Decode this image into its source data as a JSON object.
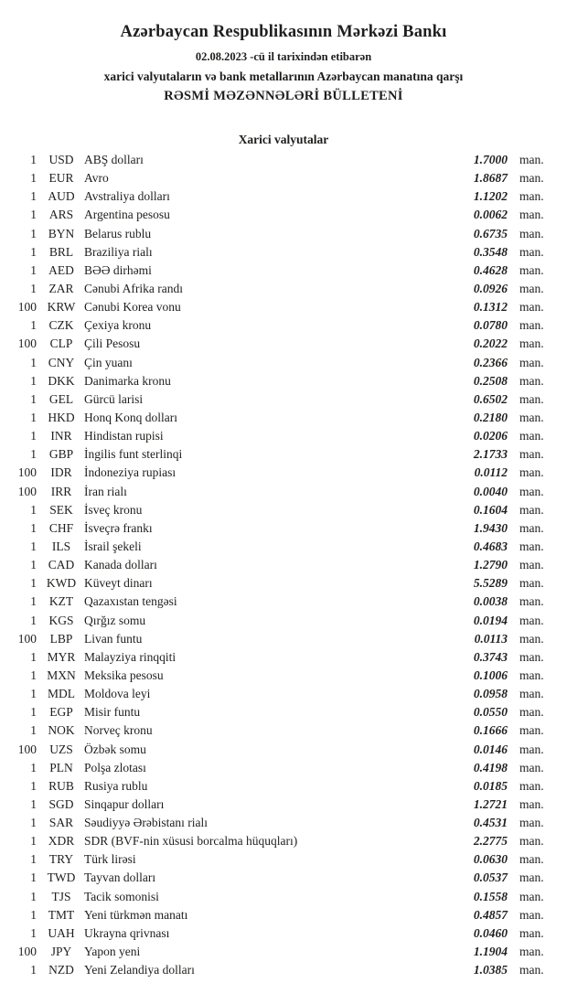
{
  "header": {
    "bank_name": "Azərbaycan Respublikasının Mərkəzi Bankı",
    "date_line": "02.08.2023 -cü il tarixindən etibarən",
    "subtitle": "xarici valyutaların və bank metallarının Azərbaycan manatına qarşı",
    "bulletin_title": "RƏSMİ MƏZƏNNƏLƏRİ BÜLLETENİ"
  },
  "section": {
    "title": "Xarici valyutalar",
    "unit_label": "man.",
    "rates": [
      {
        "qty": "1",
        "code": "USD",
        "name": "ABŞ dolları",
        "rate": "1.7000"
      },
      {
        "qty": "1",
        "code": "EUR",
        "name": "Avro",
        "rate": "1.8687"
      },
      {
        "qty": "1",
        "code": "AUD",
        "name": "Avstraliya dolları",
        "rate": "1.1202"
      },
      {
        "qty": "1",
        "code": "ARS",
        "name": "Argentina pesosu",
        "rate": "0.0062"
      },
      {
        "qty": "1",
        "code": "BYN",
        "name": "Belarus rublu",
        "rate": "0.6735"
      },
      {
        "qty": "1",
        "code": "BRL",
        "name": "Braziliya rialı",
        "rate": "0.3548"
      },
      {
        "qty": "1",
        "code": "AED",
        "name": "BƏƏ dirhəmi",
        "rate": "0.4628"
      },
      {
        "qty": "1",
        "code": "ZAR",
        "name": "Cənubi Afrika randı",
        "rate": "0.0926"
      },
      {
        "qty": "100",
        "code": "KRW",
        "name": "Cənubi Korea vonu",
        "rate": "0.1312"
      },
      {
        "qty": "1",
        "code": "CZK",
        "name": "Çexiya kronu",
        "rate": "0.0780"
      },
      {
        "qty": "100",
        "code": "CLP",
        "name": "Çili Pesosu",
        "rate": "0.2022"
      },
      {
        "qty": "1",
        "code": "CNY",
        "name": "Çin yuanı",
        "rate": "0.2366"
      },
      {
        "qty": "1",
        "code": "DKK",
        "name": "Danimarka kronu",
        "rate": "0.2508"
      },
      {
        "qty": "1",
        "code": "GEL",
        "name": "Gürcü larisi",
        "rate": "0.6502"
      },
      {
        "qty": "1",
        "code": "HKD",
        "name": "Honq Konq dolları",
        "rate": "0.2180"
      },
      {
        "qty": "1",
        "code": "INR",
        "name": "Hindistan rupisi",
        "rate": "0.0206"
      },
      {
        "qty": "1",
        "code": "GBP",
        "name": "İngilis funt sterlinqi",
        "rate": "2.1733"
      },
      {
        "qty": "100",
        "code": "IDR",
        "name": "İndoneziya rupiası",
        "rate": "0.0112"
      },
      {
        "qty": "100",
        "code": "IRR",
        "name": "İran rialı",
        "rate": "0.0040"
      },
      {
        "qty": "1",
        "code": "SEK",
        "name": "İsveç kronu",
        "rate": "0.1604"
      },
      {
        "qty": "1",
        "code": "CHF",
        "name": "İsveçrə frankı",
        "rate": "1.9430"
      },
      {
        "qty": "1",
        "code": "ILS",
        "name": "İsrail şekeli",
        "rate": "0.4683"
      },
      {
        "qty": "1",
        "code": "CAD",
        "name": "Kanada dolları",
        "rate": "1.2790"
      },
      {
        "qty": "1",
        "code": "KWD",
        "name": "Küveyt dinarı",
        "rate": "5.5289"
      },
      {
        "qty": "1",
        "code": "KZT",
        "name": "Qazaxıstan tengəsi",
        "rate": "0.0038"
      },
      {
        "qty": "1",
        "code": "KGS",
        "name": "Qırğız somu",
        "rate": "0.0194"
      },
      {
        "qty": "100",
        "code": "LBP",
        "name": "Livan funtu",
        "rate": "0.0113"
      },
      {
        "qty": "1",
        "code": "MYR",
        "name": "Malayziya rinqqiti",
        "rate": "0.3743"
      },
      {
        "qty": "1",
        "code": "MXN",
        "name": "Meksika pesosu",
        "rate": "0.1006"
      },
      {
        "qty": "1",
        "code": "MDL",
        "name": "Moldova leyi",
        "rate": "0.0958"
      },
      {
        "qty": "1",
        "code": "EGP",
        "name": "Misir funtu",
        "rate": "0.0550"
      },
      {
        "qty": "1",
        "code": "NOK",
        "name": "Norveç kronu",
        "rate": "0.1666"
      },
      {
        "qty": "100",
        "code": "UZS",
        "name": "Özbək somu",
        "rate": "0.0146"
      },
      {
        "qty": "1",
        "code": "PLN",
        "name": "Polşa zlotası",
        "rate": "0.4198"
      },
      {
        "qty": "1",
        "code": "RUB",
        "name": "Rusiya rublu",
        "rate": "0.0185"
      },
      {
        "qty": "1",
        "code": "SGD",
        "name": "Sinqapur dolları",
        "rate": "1.2721"
      },
      {
        "qty": "1",
        "code": "SAR",
        "name": "Səudiyyə Ərəbistanı rialı",
        "rate": "0.4531"
      },
      {
        "qty": "1",
        "code": "XDR",
        "name": "SDR (BVF-nin xüsusi borcalma hüquqları)",
        "rate": "2.2775"
      },
      {
        "qty": "1",
        "code": "TRY",
        "name": "Türk lirəsi",
        "rate": "0.0630"
      },
      {
        "qty": "1",
        "code": "TWD",
        "name": "Tayvan dolları",
        "rate": "0.0537"
      },
      {
        "qty": "1",
        "code": "TJS",
        "name": "Tacik somonisi",
        "rate": "0.1558"
      },
      {
        "qty": "1",
        "code": "TMT",
        "name": "Yeni türkmən manatı",
        "rate": "0.4857"
      },
      {
        "qty": "1",
        "code": "UAH",
        "name": "Ukrayna qrivnası",
        "rate": "0.0460"
      },
      {
        "qty": "100",
        "code": "JPY",
        "name": "Yapon yeni",
        "rate": "1.1904"
      },
      {
        "qty": "1",
        "code": "NZD",
        "name": "Yeni Zelandiya dolları",
        "rate": "1.0385"
      }
    ]
  }
}
